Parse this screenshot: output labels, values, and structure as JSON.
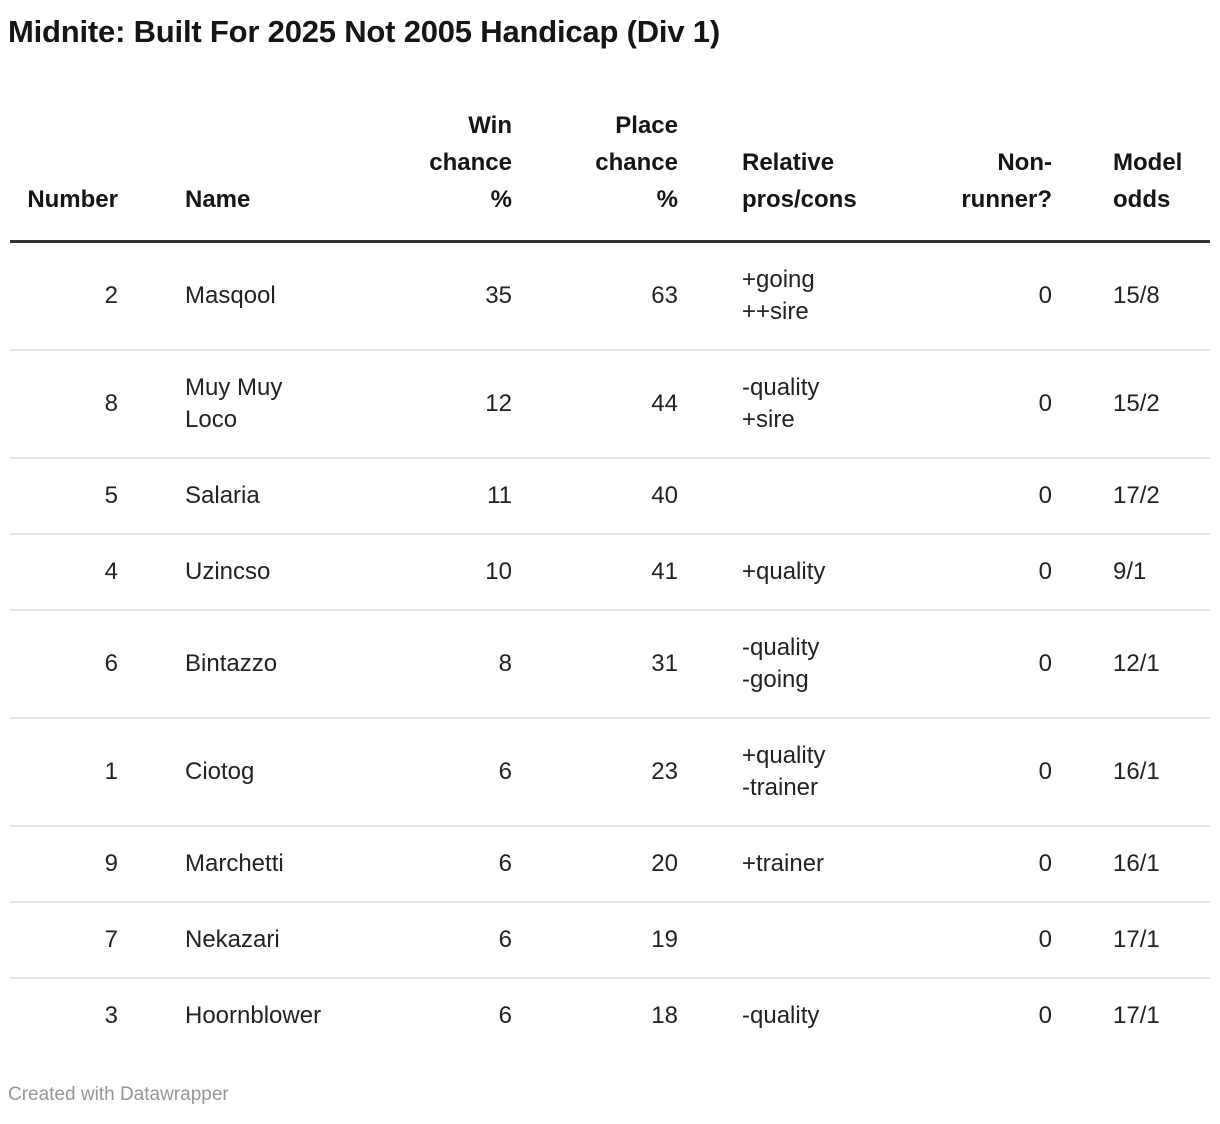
{
  "title": "Midnite: Built For 2025 Not 2005 Handicap (Div 1)",
  "footer": {
    "credit": "Created with Datawrapper"
  },
  "colors": {
    "background": "#ffffff",
    "title_text": "#151515",
    "body_text": "#222222",
    "header_rule": "#333333",
    "row_separator": "#e6e6e6",
    "footer_text": "#969696"
  },
  "chart_data": {
    "type": "table",
    "title": "Midnite: Built For 2025 Not 2005 Handicap (Div 1)",
    "columns": [
      {
        "key": "number",
        "label": "Number",
        "align": "right"
      },
      {
        "key": "name",
        "label": "Name",
        "align": "left"
      },
      {
        "key": "win",
        "label": "Win\nchance\n%",
        "align": "right"
      },
      {
        "key": "place",
        "label": "Place\nchance\n%",
        "align": "right"
      },
      {
        "key": "pros",
        "label": "Relative\npros/cons",
        "align": "left"
      },
      {
        "key": "nonrunner",
        "label": "Non-\nrunner?",
        "align": "right"
      },
      {
        "key": "odds",
        "label": "Model\nodds",
        "align": "left"
      }
    ],
    "rows": [
      {
        "number": 2,
        "name": "Masqool",
        "win": 35,
        "place": 63,
        "pros": "+going\n++sire",
        "nonrunner": 0,
        "odds": "15/8"
      },
      {
        "number": 8,
        "name": "Muy Muy\nLoco",
        "win": 12,
        "place": 44,
        "pros": "-quality\n+sire",
        "nonrunner": 0,
        "odds": "15/2"
      },
      {
        "number": 5,
        "name": "Salaria",
        "win": 11,
        "place": 40,
        "pros": "",
        "nonrunner": 0,
        "odds": "17/2"
      },
      {
        "number": 4,
        "name": "Uzincso",
        "win": 10,
        "place": 41,
        "pros": "+quality",
        "nonrunner": 0,
        "odds": "9/1"
      },
      {
        "number": 6,
        "name": "Bintazzo",
        "win": 8,
        "place": 31,
        "pros": "-quality\n-going",
        "nonrunner": 0,
        "odds": "12/1"
      },
      {
        "number": 1,
        "name": "Ciotog",
        "win": 6,
        "place": 23,
        "pros": "+quality\n-trainer",
        "nonrunner": 0,
        "odds": "16/1"
      },
      {
        "number": 9,
        "name": "Marchetti",
        "win": 6,
        "place": 20,
        "pros": "+trainer",
        "nonrunner": 0,
        "odds": "16/1"
      },
      {
        "number": 7,
        "name": "Nekazari",
        "win": 6,
        "place": 19,
        "pros": "",
        "nonrunner": 0,
        "odds": "17/1"
      },
      {
        "number": 3,
        "name": "Hoornblower",
        "win": 6,
        "place": 18,
        "pros": "-quality",
        "nonrunner": 0,
        "odds": "17/1"
      }
    ]
  }
}
